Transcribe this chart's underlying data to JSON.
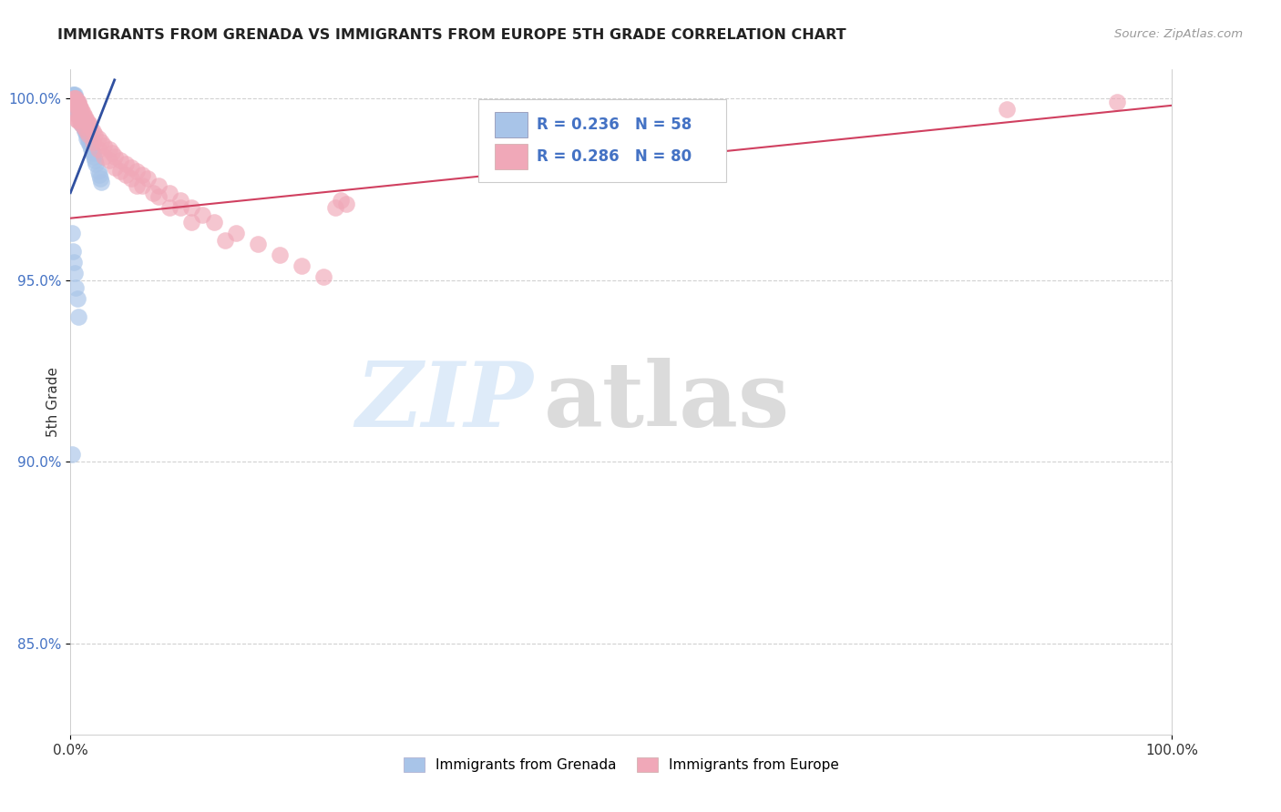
{
  "title": "IMMIGRANTS FROM GRENADA VS IMMIGRANTS FROM EUROPE 5TH GRADE CORRELATION CHART",
  "source": "Source: ZipAtlas.com",
  "ylabel": "5th Grade",
  "legend_label1": "Immigrants from Grenada",
  "legend_label2": "Immigrants from Europe",
  "R1": "0.236",
  "N1": "58",
  "R2": "0.286",
  "N2": "80",
  "color_blue": "#a8c4e8",
  "color_pink": "#f0a8b8",
  "color_blue_line": "#3050a0",
  "color_pink_line": "#d04060",
  "color_text_blue": "#4472C4",
  "xlim": [
    0.0,
    1.0
  ],
  "ylim": [
    0.825,
    1.008
  ],
  "yticks": [
    0.85,
    0.9,
    0.95,
    1.0
  ],
  "ytick_labels": [
    "85.0%",
    "90.0%",
    "95.0%",
    "100.0%"
  ],
  "blue_trend_x": [
    0.0,
    0.04
  ],
  "blue_trend_y": [
    0.974,
    1.005
  ],
  "pink_trend_x": [
    0.0,
    1.0
  ],
  "pink_trend_y": [
    0.967,
    0.998
  ],
  "blue_x": [
    0.002,
    0.002,
    0.003,
    0.003,
    0.003,
    0.004,
    0.004,
    0.004,
    0.004,
    0.005,
    0.005,
    0.005,
    0.005,
    0.005,
    0.006,
    0.006,
    0.006,
    0.006,
    0.007,
    0.007,
    0.007,
    0.008,
    0.008,
    0.008,
    0.009,
    0.009,
    0.01,
    0.01,
    0.01,
    0.011,
    0.011,
    0.012,
    0.012,
    0.013,
    0.013,
    0.014,
    0.015,
    0.015,
    0.016,
    0.017,
    0.018,
    0.019,
    0.02,
    0.021,
    0.022,
    0.023,
    0.025,
    0.026,
    0.027,
    0.028,
    0.001,
    0.002,
    0.003,
    0.004,
    0.005,
    0.006,
    0.007,
    0.001
  ],
  "blue_y": [
    1.001,
    0.999,
    1.001,
    1.0,
    0.999,
    1.001,
    1.0,
    0.999,
    0.998,
    1.0,
    0.999,
    0.998,
    0.997,
    0.996,
    0.999,
    0.998,
    0.997,
    0.996,
    0.998,
    0.997,
    0.996,
    0.997,
    0.996,
    0.995,
    0.996,
    0.995,
    0.995,
    0.994,
    0.993,
    0.994,
    0.993,
    0.993,
    0.992,
    0.992,
    0.991,
    0.991,
    0.99,
    0.989,
    0.988,
    0.988,
    0.987,
    0.986,
    0.985,
    0.984,
    0.983,
    0.982,
    0.98,
    0.979,
    0.978,
    0.977,
    0.963,
    0.958,
    0.955,
    0.952,
    0.948,
    0.945,
    0.94,
    0.902
  ],
  "pink_x": [
    0.002,
    0.003,
    0.003,
    0.004,
    0.004,
    0.005,
    0.005,
    0.005,
    0.006,
    0.006,
    0.007,
    0.007,
    0.008,
    0.008,
    0.009,
    0.01,
    0.01,
    0.011,
    0.012,
    0.013,
    0.014,
    0.015,
    0.016,
    0.017,
    0.018,
    0.02,
    0.022,
    0.025,
    0.028,
    0.03,
    0.035,
    0.038,
    0.04,
    0.045,
    0.05,
    0.055,
    0.06,
    0.065,
    0.07,
    0.08,
    0.09,
    0.1,
    0.11,
    0.12,
    0.13,
    0.15,
    0.17,
    0.19,
    0.21,
    0.23,
    0.025,
    0.04,
    0.06,
    0.09,
    0.11,
    0.14,
    0.055,
    0.035,
    0.065,
    0.08,
    0.045,
    0.03,
    0.02,
    0.015,
    0.01,
    0.007,
    0.006,
    0.05,
    0.075,
    0.1,
    0.016,
    0.012,
    0.008,
    0.006,
    0.004,
    0.25,
    0.24,
    0.245,
    0.85,
    0.95
  ],
  "pink_y": [
    0.999,
    1.0,
    0.999,
    1.0,
    0.999,
    1.0,
    0.999,
    0.998,
    0.999,
    0.998,
    0.999,
    0.998,
    0.998,
    0.997,
    0.997,
    0.997,
    0.996,
    0.996,
    0.995,
    0.995,
    0.994,
    0.994,
    0.993,
    0.993,
    0.992,
    0.991,
    0.99,
    0.989,
    0.988,
    0.987,
    0.986,
    0.985,
    0.984,
    0.983,
    0.982,
    0.981,
    0.98,
    0.979,
    0.978,
    0.976,
    0.974,
    0.972,
    0.97,
    0.968,
    0.966,
    0.963,
    0.96,
    0.957,
    0.954,
    0.951,
    0.986,
    0.981,
    0.976,
    0.97,
    0.966,
    0.961,
    0.978,
    0.983,
    0.976,
    0.973,
    0.98,
    0.984,
    0.988,
    0.991,
    0.993,
    0.995,
    0.994,
    0.979,
    0.974,
    0.97,
    0.99,
    0.992,
    0.994,
    0.994,
    0.996,
    0.971,
    0.97,
    0.972,
    0.997,
    0.999
  ]
}
